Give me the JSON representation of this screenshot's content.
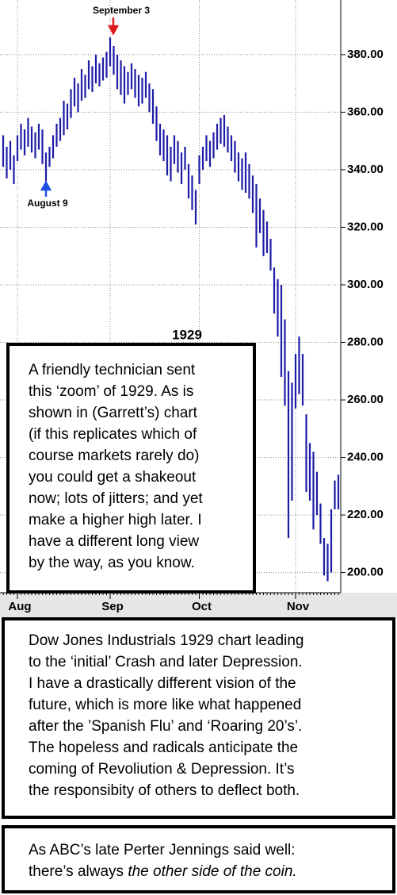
{
  "chart_data": {
    "type": "ohlc",
    "title": "1929",
    "annotations": [
      "September 3",
      "August 9"
    ],
    "categories": [
      null,
      null,
      null,
      null,
      "Aug",
      null,
      null,
      null,
      null,
      null,
      null,
      null,
      null,
      null,
      null,
      null,
      null,
      null,
      null,
      null,
      null,
      null,
      null,
      null,
      null,
      null,
      null,
      null,
      null,
      null,
      "Sep",
      null,
      null,
      null,
      null,
      null,
      null,
      null,
      null,
      null,
      null,
      null,
      null,
      null,
      null,
      null,
      null,
      null,
      null,
      null,
      null,
      null,
      null,
      null,
      null,
      "Oct",
      null,
      null,
      null,
      null,
      null,
      null,
      null,
      null,
      null,
      null,
      null,
      null,
      null,
      null,
      null,
      null,
      null,
      null,
      null,
      null,
      null,
      null,
      null,
      null,
      null,
      null,
      "Nov",
      null,
      null,
      null,
      null,
      null,
      null,
      null,
      null,
      null,
      null,
      null,
      null
    ],
    "high": [
      352,
      348,
      350,
      345,
      352,
      356,
      354,
      358,
      355,
      353,
      356,
      354,
      346,
      348,
      352,
      356,
      358,
      364,
      363,
      368,
      372,
      370,
      375,
      373,
      378,
      376,
      380,
      377,
      379,
      381,
      386,
      383,
      380,
      378,
      376,
      374,
      377,
      375,
      373,
      372,
      374,
      370,
      368,
      362,
      356,
      354,
      352,
      348,
      352,
      350,
      346,
      348,
      342,
      338,
      333,
      345,
      348,
      352,
      350,
      353,
      356,
      358,
      359,
      355,
      352,
      350,
      346,
      344,
      346,
      342,
      338,
      335,
      330,
      326,
      322,
      316,
      306,
      302,
      300,
      288,
      270,
      266,
      276,
      282,
      276,
      255,
      245,
      242,
      235,
      224,
      212,
      210,
      222,
      232,
      234
    ],
    "low": [
      341,
      337,
      340,
      335,
      343,
      347,
      345,
      348,
      346,
      344,
      347,
      342,
      336,
      341,
      344,
      348,
      350,
      352,
      354,
      358,
      362,
      360,
      364,
      365,
      368,
      367,
      370,
      369,
      371,
      372,
      376,
      373,
      368,
      366,
      363,
      366,
      368,
      365,
      362,
      363,
      365,
      360,
      356,
      350,
      345,
      343,
      338,
      336,
      342,
      339,
      335,
      340,
      330,
      326,
      321,
      335,
      340,
      343,
      341,
      344,
      347,
      349,
      348,
      346,
      343,
      339,
      336,
      333,
      332,
      330,
      325,
      313,
      318,
      310,
      311,
      305,
      290,
      282,
      268,
      258,
      212,
      225,
      257,
      262,
      258,
      228,
      225,
      215,
      220,
      210,
      199,
      197,
      200,
      222,
      222
    ],
    "color": "#1c1ca6",
    "ylim": [
      193,
      399
    ],
    "yticks": [
      {
        "value": 200,
        "label": "200.00"
      },
      {
        "value": 220,
        "label": "220.00"
      },
      {
        "value": 240,
        "label": "240.00"
      },
      {
        "value": 260,
        "label": "260.00"
      },
      {
        "value": 280,
        "label": "280.00"
      },
      {
        "value": 300,
        "label": "300.00"
      },
      {
        "value": 320,
        "label": "320.00"
      },
      {
        "value": 340,
        "label": "340.00"
      },
      {
        "value": 360,
        "label": "360.00"
      },
      {
        "value": 380,
        "label": "380.00"
      }
    ],
    "grid": true
  },
  "notes": {
    "box1": [
      "A friendly technician sent",
      "this ‘zoom’ of 1929. As is",
      "shown in (Garrett’s) chart",
      "(if this replicates which of",
      "course markets rarely do)",
      "you could get a shakeout",
      "now; lots of jitters; and yet",
      "make a higher high later. I",
      "have a different long view",
      "by the way, as you know."
    ],
    "box2": [
      "Dow Jones Industrials 1929 chart leading",
      "to the ‘initial’ Crash and later Depression.",
      "I have a drastically different vision of the",
      "future, which is more like what happened",
      "after the ’Spanish Flu’ and ‘Roaring 20’s’.",
      "The hopeless and radicals anticipate the",
      "coming of Revoliution & Depression. It’s",
      "the responsibity of others to deflect both."
    ],
    "box3": {
      "line1": "As ABC’s late Perter Jennings said well:",
      "line2": "there’s always ",
      "line2_italic": "the other side of the coin."
    }
  }
}
